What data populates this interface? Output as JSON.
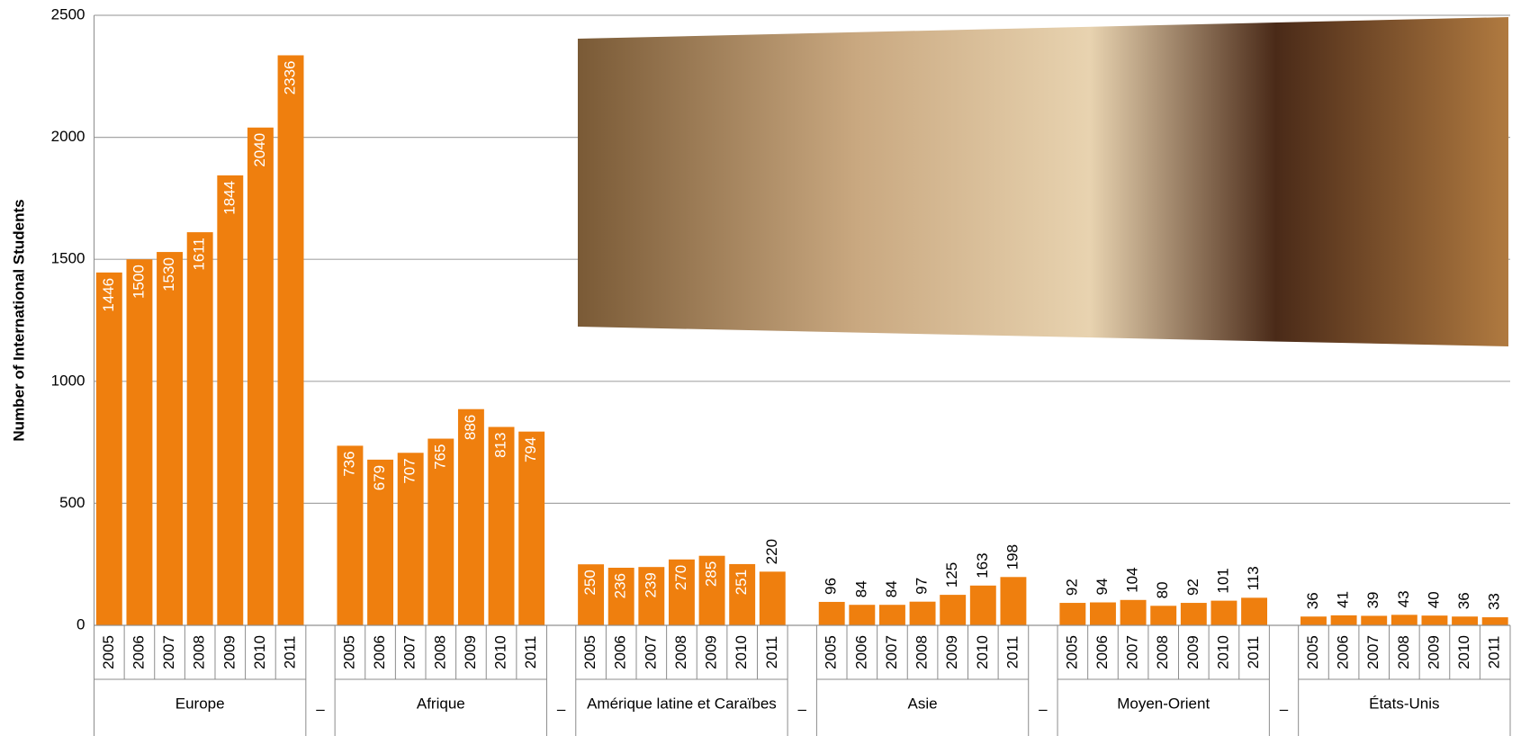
{
  "chart_data": {
    "type": "bar",
    "y_label": "Number of International Students",
    "categories": [
      "2005",
      "2006",
      "2007",
      "2008",
      "2009",
      "2010",
      "2011"
    ],
    "separator_label": "–",
    "color": "#ef7f0e",
    "series": [
      {
        "name": "Europe",
        "values": [
          1446,
          1500,
          1530,
          1611,
          1844,
          2040,
          2336
        ]
      },
      {
        "name": "Afrique",
        "values": [
          736,
          679,
          707,
          765,
          886,
          813,
          794
        ]
      },
      {
        "name": "Amérique latine et Caraïbes",
        "values": [
          250,
          236,
          239,
          270,
          285,
          251,
          220
        ]
      },
      {
        "name": "Asie",
        "values": [
          96,
          84,
          84,
          97,
          125,
          163,
          198
        ]
      },
      {
        "name": "Moyen-Orient",
        "values": [
          92,
          94,
          104,
          80,
          92,
          101,
          113
        ]
      },
      {
        "name": "États-Unis",
        "values": [
          36,
          41,
          39,
          43,
          40,
          36,
          33
        ]
      }
    ],
    "ylim": [
      0,
      2500
    ],
    "yticks": [
      0,
      500,
      1000,
      1500,
      2000,
      2500
    ],
    "grid": true
  }
}
